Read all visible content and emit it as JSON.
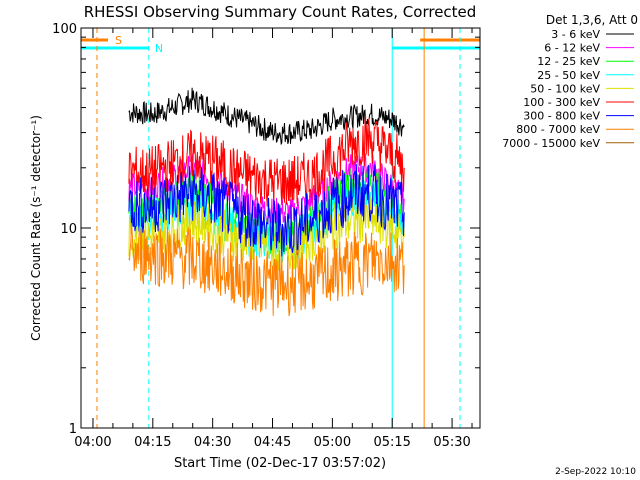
{
  "chart_data": {
    "type": "line",
    "title": "RHESSI Observing Summary Count Rates, Corrected",
    "xlabel": "Start Time (02-Dec-17 03:57:02)",
    "ylabel": "Corrected Count Rate (s⁻¹ detector⁻¹)",
    "y_scale": "log",
    "ylim": [
      1,
      100
    ],
    "xlim": [
      "03:57",
      "05:37"
    ],
    "x_ticks": [
      "04:00",
      "04:15",
      "04:30",
      "04:45",
      "05:00",
      "05:15",
      "05:30"
    ],
    "y_ticks": [
      "1",
      "10",
      "100"
    ],
    "legend_title": "Det 1,3,6, Att 0",
    "legend_position": "right",
    "footer": "2-Sep-2022 10:10",
    "flags": [
      {
        "label": "S",
        "color": "#ff8000",
        "start": "03:57",
        "end": "04:00",
        "end2_start": "05:22",
        "end2_end": "05:37"
      },
      {
        "label": "N",
        "color": "#00ffff",
        "start": "03:57",
        "end": "04:14",
        "end2_start": "05:15",
        "end2_end": "05:37"
      }
    ],
    "markers": [
      {
        "time": "04:01",
        "color": "#ff8000",
        "style": "dashed"
      },
      {
        "time": "04:14",
        "color": "#00ffff",
        "style": "dashed"
      },
      {
        "time": "05:15",
        "color": "#00ffff",
        "style": "solid"
      },
      {
        "time": "05:23",
        "color": "#ff8000",
        "style": "solid"
      },
      {
        "time": "05:32",
        "color": "#00ffff",
        "style": "dashed"
      }
    ],
    "series": [
      {
        "name": "3 - 6 keV",
        "color": "#000000",
        "x": [
          "04:09",
          "04:15",
          "04:20",
          "04:25",
          "04:30",
          "04:35",
          "04:40",
          "04:45",
          "04:50",
          "04:55",
          "05:00",
          "05:05",
          "05:10",
          "05:15",
          "05:17",
          "05:18"
        ],
        "values": [
          38,
          37,
          40,
          44,
          40,
          36,
          33,
          30,
          30,
          31,
          35,
          36,
          37,
          35,
          33,
          32
        ]
      },
      {
        "name": "6 - 12 keV",
        "color": "#ff00ff",
        "x": [
          "04:09",
          "04:15",
          "04:20",
          "04:25",
          "04:30",
          "04:35",
          "04:40",
          "04:45",
          "04:50",
          "04:55",
          "05:00",
          "05:05",
          "05:10",
          "05:15",
          "05:18"
        ],
        "values": [
          16,
          16,
          18,
          20,
          18,
          15,
          13,
          12,
          12,
          14,
          17,
          20,
          20,
          16,
          14
        ]
      },
      {
        "name": "12 - 25 keV",
        "color": "#00ff00",
        "x": [
          "04:09",
          "04:15",
          "04:20",
          "04:25",
          "04:30",
          "04:35",
          "04:40",
          "04:45",
          "04:50",
          "04:55",
          "05:00",
          "05:05",
          "05:10",
          "05:15",
          "05:18"
        ],
        "values": [
          12,
          12,
          14,
          16,
          14,
          11,
          10,
          9,
          9,
          11,
          14,
          17,
          17,
          13,
          11
        ]
      },
      {
        "name": "25 - 50 keV",
        "color": "#00ffff",
        "x": [
          "04:09",
          "04:15",
          "04:20",
          "04:25",
          "04:30",
          "04:35",
          "04:40",
          "04:45",
          "04:50",
          "04:55",
          "05:00",
          "05:05",
          "05:10",
          "05:15",
          "05:18"
        ],
        "values": [
          11,
          11,
          12,
          13,
          12,
          10,
          9,
          8.5,
          8.5,
          10,
          12,
          14,
          14,
          12,
          10
        ]
      },
      {
        "name": "50 - 100 keV",
        "color": "#e0e000",
        "x": [
          "04:09",
          "04:15",
          "04:20",
          "04:25",
          "04:30",
          "04:35",
          "04:40",
          "04:45",
          "04:50",
          "04:55",
          "05:00",
          "05:05",
          "05:10",
          "05:15",
          "05:18"
        ],
        "values": [
          9,
          9,
          10,
          11,
          10,
          9,
          8.5,
          8,
          8,
          9,
          10,
          11,
          11,
          10,
          9
        ]
      },
      {
        "name": "100 - 300 keV",
        "color": "#ff0000",
        "x": [
          "04:09",
          "04:15",
          "04:20",
          "04:25",
          "04:30",
          "04:35",
          "04:40",
          "04:45",
          "04:50",
          "04:55",
          "05:00",
          "05:05",
          "05:10",
          "05:15",
          "05:18"
        ],
        "values": [
          19,
          19,
          21,
          23,
          22,
          19,
          18,
          17,
          17,
          18,
          22,
          27,
          28,
          23,
          20
        ]
      },
      {
        "name": "300 - 800 keV",
        "color": "#0000ff",
        "x": [
          "04:09",
          "04:15",
          "04:20",
          "04:25",
          "04:30",
          "04:35",
          "04:40",
          "04:45",
          "04:50",
          "04:55",
          "05:00",
          "05:05",
          "05:10",
          "05:15",
          "05:18"
        ],
        "values": [
          13,
          13,
          14,
          15,
          14,
          12,
          11,
          10,
          10,
          11,
          13,
          15,
          15,
          13,
          12
        ]
      },
      {
        "name": "800 - 7000 keV",
        "color": "#ff8000",
        "x": [
          "04:09",
          "04:15",
          "04:20",
          "04:25",
          "04:30",
          "04:35",
          "04:40",
          "04:45",
          "04:50",
          "04:55",
          "05:00",
          "05:05",
          "05:10",
          "05:15",
          "05:18"
        ],
        "values": [
          7.5,
          7.5,
          7.2,
          7.0,
          6.5,
          6.0,
          5.5,
          5.3,
          5.3,
          5.5,
          6.0,
          6.5,
          7.0,
          7.0,
          6.5
        ]
      },
      {
        "name": "7000 - 15000 keV",
        "color": "#a06000",
        "x": [],
        "values": []
      }
    ]
  }
}
